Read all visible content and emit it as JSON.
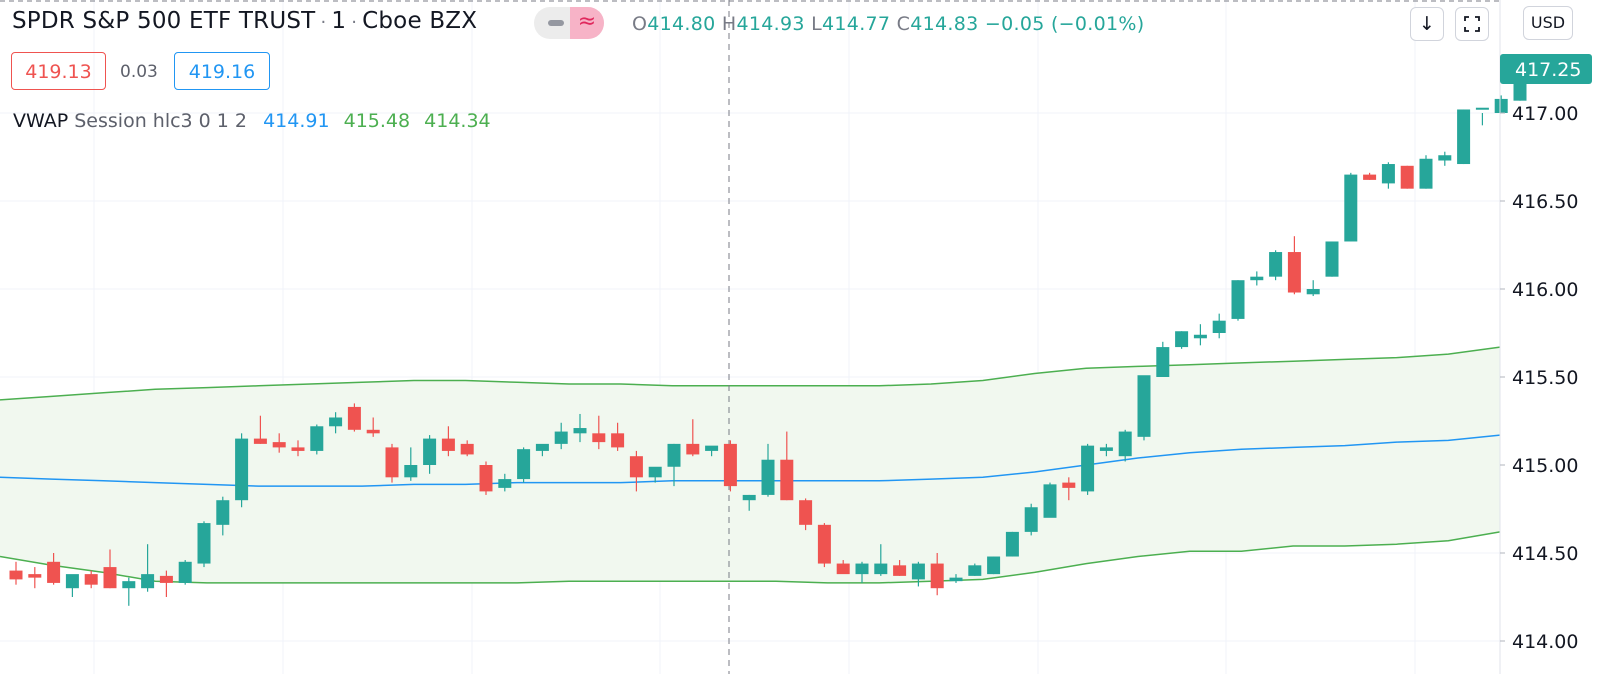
{
  "header": {
    "symbol": "SPDR S&P 500 ETF TRUST",
    "interval": "1",
    "exchange": "Cboe BZX",
    "ohlc": {
      "o_label": "O",
      "o": "414.80",
      "h_label": "H",
      "h": "414.93",
      "l_label": "L",
      "l": "414.77",
      "c_label": "C",
      "c": "414.83",
      "change": "−0.05 (−0.01%)"
    }
  },
  "quote": {
    "bid": "419.13",
    "spread": "0.03",
    "ask": "419.16"
  },
  "indicator": {
    "name": "VWAP",
    "params": "Session hlc3 0 1 2",
    "vwap": "414.91",
    "upper": "415.48",
    "lower": "414.34"
  },
  "toolbar": {
    "download_icon": "arrow-down-icon",
    "fullscreen_icon": "fullscreen-icon",
    "currency": "USD"
  },
  "colors": {
    "up": "#26a69a",
    "down": "#ef5350",
    "vwap": "#2196f3",
    "band": "#4caf50",
    "band_fill": "#f1f8ef"
  },
  "chart_data": {
    "type": "candlestick",
    "y_axis": {
      "ticks": [
        "414.00",
        "414.50",
        "415.00",
        "415.50",
        "416.00",
        "416.50",
        "417.00"
      ],
      "ylim": [
        413.92,
        417.58
      ]
    },
    "last_price_label": "417.25",
    "grid": true,
    "crosshair": true,
    "candles": [
      [
        414.4,
        414.45,
        414.32,
        414.35
      ],
      [
        414.38,
        414.42,
        414.3,
        414.36
      ],
      [
        414.45,
        414.5,
        414.32,
        414.33
      ],
      [
        414.3,
        414.35,
        414.25,
        414.38
      ],
      [
        414.38,
        414.4,
        414.3,
        414.32
      ],
      [
        414.42,
        414.52,
        414.3,
        414.3
      ],
      [
        414.3,
        414.36,
        414.2,
        414.34
      ],
      [
        414.3,
        414.55,
        414.28,
        414.38
      ],
      [
        414.37,
        414.4,
        414.25,
        414.33
      ],
      [
        414.33,
        414.46,
        414.32,
        414.45
      ],
      [
        414.44,
        414.68,
        414.42,
        414.67
      ],
      [
        414.66,
        414.82,
        414.6,
        414.8
      ],
      [
        414.8,
        415.18,
        414.76,
        415.15
      ],
      [
        415.15,
        415.28,
        415.12,
        415.12
      ],
      [
        415.13,
        415.18,
        415.07,
        415.1
      ],
      [
        415.1,
        415.14,
        415.05,
        415.08
      ],
      [
        415.08,
        415.23,
        415.06,
        415.22
      ],
      [
        415.22,
        415.3,
        415.18,
        415.27
      ],
      [
        415.33,
        415.35,
        415.19,
        415.2
      ],
      [
        415.2,
        415.27,
        415.16,
        415.18
      ],
      [
        415.1,
        415.12,
        414.9,
        414.93
      ],
      [
        414.93,
        415.1,
        414.91,
        415.0
      ],
      [
        415.0,
        415.17,
        414.95,
        415.15
      ],
      [
        415.15,
        415.22,
        415.05,
        415.08
      ],
      [
        415.12,
        415.14,
        415.05,
        415.06
      ],
      [
        415.0,
        415.02,
        414.83,
        414.85
      ],
      [
        414.87,
        414.95,
        414.85,
        414.92
      ],
      [
        414.92,
        415.1,
        414.9,
        415.09
      ],
      [
        415.08,
        415.1,
        415.05,
        415.12
      ],
      [
        415.12,
        415.24,
        415.09,
        415.19
      ],
      [
        415.18,
        415.29,
        415.13,
        415.21
      ],
      [
        415.18,
        415.28,
        415.09,
        415.13
      ],
      [
        415.18,
        415.24,
        415.08,
        415.1
      ],
      [
        415.05,
        415.08,
        414.85,
        414.93
      ],
      [
        414.93,
        414.98,
        414.9,
        414.99
      ],
      [
        414.99,
        415.12,
        414.88,
        415.12
      ],
      [
        415.12,
        415.26,
        415.05,
        415.06
      ],
      [
        415.08,
        415.1,
        415.05,
        415.11
      ],
      [
        415.12,
        415.14,
        414.85,
        414.88
      ],
      [
        414.8,
        414.83,
        414.74,
        414.83
      ],
      [
        414.83,
        415.12,
        414.82,
        415.03
      ],
      [
        415.03,
        415.19,
        414.8,
        414.8
      ],
      [
        414.8,
        414.81,
        414.63,
        414.66
      ],
      [
        414.66,
        414.67,
        414.42,
        414.44
      ],
      [
        414.44,
        414.46,
        414.39,
        414.38
      ],
      [
        414.38,
        414.45,
        414.33,
        414.44
      ],
      [
        414.38,
        414.55,
        414.37,
        414.44
      ],
      [
        414.43,
        414.46,
        414.37,
        414.37
      ],
      [
        414.35,
        414.45,
        414.31,
        414.44
      ],
      [
        414.44,
        414.5,
        414.26,
        414.3
      ],
      [
        414.34,
        414.38,
        414.33,
        414.36
      ],
      [
        414.37,
        414.44,
        414.37,
        414.43
      ],
      [
        414.38,
        414.48,
        414.38,
        414.48
      ],
      [
        414.48,
        414.62,
        414.48,
        414.62
      ],
      [
        414.62,
        414.78,
        414.6,
        414.76
      ],
      [
        414.7,
        414.9,
        414.72,
        414.89
      ],
      [
        414.9,
        414.93,
        414.8,
        414.87
      ],
      [
        414.85,
        415.12,
        414.83,
        415.11
      ],
      [
        415.08,
        415.12,
        415.05,
        415.1
      ],
      [
        415.05,
        415.2,
        415.02,
        415.19
      ],
      [
        415.16,
        415.5,
        415.14,
        415.51
      ],
      [
        415.5,
        415.7,
        415.5,
        415.67
      ],
      [
        415.67,
        415.76,
        415.66,
        415.76
      ],
      [
        415.72,
        415.8,
        415.68,
        415.74
      ],
      [
        415.75,
        415.86,
        415.72,
        415.82
      ],
      [
        415.83,
        416.05,
        415.82,
        416.05
      ],
      [
        416.05,
        416.1,
        416.02,
        416.07
      ],
      [
        416.07,
        416.22,
        416.05,
        416.21
      ],
      [
        416.21,
        416.3,
        415.97,
        415.98
      ],
      [
        415.97,
        416.05,
        415.96,
        416.0
      ],
      [
        416.07,
        416.27,
        416.07,
        416.27
      ],
      [
        416.27,
        416.66,
        416.27,
        416.65
      ],
      [
        416.65,
        416.66,
        416.62,
        416.62
      ],
      [
        416.6,
        416.72,
        416.57,
        416.71
      ],
      [
        416.7,
        416.7,
        416.57,
        416.57
      ],
      [
        416.57,
        416.76,
        416.57,
        416.74
      ],
      [
        416.73,
        416.78,
        416.7,
        416.76
      ],
      [
        416.71,
        417.02,
        416.71,
        417.02
      ],
      [
        417.02,
        417.0,
        416.93,
        417.03
      ],
      [
        417.0,
        417.1,
        417.0,
        417.08
      ],
      [
        417.07,
        417.26,
        417.07,
        417.25
      ]
    ],
    "vwap": [
      414.93,
      414.92,
      414.91,
      414.9,
      414.89,
      414.88,
      414.88,
      414.88,
      414.89,
      414.89,
      414.9,
      414.9,
      414.9,
      414.91,
      414.91,
      414.91,
      414.91,
      414.91,
      414.92,
      414.93,
      414.96,
      415.0,
      415.04,
      415.07,
      415.09,
      415.1,
      415.11,
      415.13,
      415.14,
      415.17
    ],
    "upper": [
      415.37,
      415.39,
      415.41,
      415.43,
      415.44,
      415.45,
      415.46,
      415.47,
      415.48,
      415.48,
      415.47,
      415.46,
      415.46,
      415.45,
      415.45,
      415.45,
      415.45,
      415.45,
      415.46,
      415.48,
      415.52,
      415.55,
      415.56,
      415.57,
      415.58,
      415.59,
      415.6,
      415.61,
      415.63,
      415.67
    ],
    "lower": [
      414.48,
      414.43,
      414.39,
      414.34,
      414.33,
      414.33,
      414.33,
      414.33,
      414.33,
      414.33,
      414.33,
      414.34,
      414.34,
      414.34,
      414.34,
      414.34,
      414.33,
      414.33,
      414.34,
      414.35,
      414.39,
      414.44,
      414.48,
      414.51,
      414.51,
      414.54,
      414.54,
      414.55,
      414.57,
      414.62
    ]
  }
}
